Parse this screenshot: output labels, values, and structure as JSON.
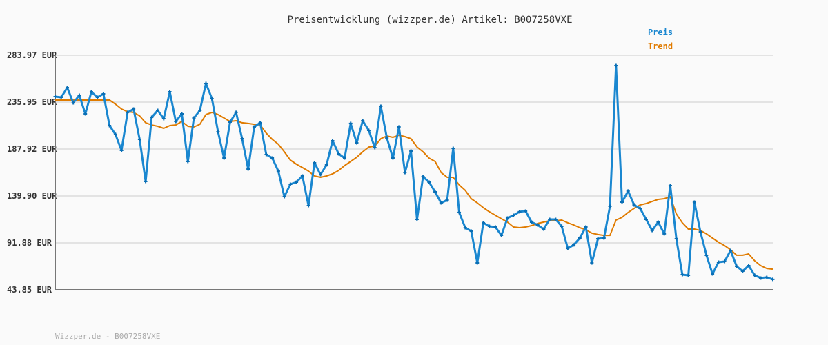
{
  "chart_data": {
    "type": "line",
    "title": "Preisentwicklung (wizzper.de) Artikel: B007258VXE",
    "footer": "Wizzper.de - B007258VXE",
    "ylim": [
      43.85,
      283.97
    ],
    "yticks": [
      "283.97 EUR",
      "235.95 EUR",
      "187.92 EUR",
      "139.90 EUR",
      "91.88 EUR",
      "43.85 EUR"
    ],
    "ytick_values": [
      283.97,
      235.95,
      187.92,
      139.9,
      91.88,
      43.85
    ],
    "grid": true,
    "legend_placement": "top-right",
    "series": [
      {
        "name": "Preis",
        "color": "#1a87d0",
        "markers": true,
        "values": [
          241.6,
          240.9,
          250.8,
          235.2,
          243.0,
          223.9,
          246.5,
          240.9,
          244.4,
          211.9,
          202.8,
          186.5,
          225.4,
          228.9,
          197.8,
          154.7,
          220.4,
          227.5,
          219.0,
          246.5,
          216.2,
          223.9,
          175.2,
          219.7,
          227.5,
          255.0,
          239.5,
          205.6,
          178.7,
          215.5,
          225.4,
          198.5,
          167.4,
          210.5,
          214.8,
          182.3,
          178.7,
          165.3,
          139.2,
          151.9,
          154.0,
          160.4,
          130.0,
          173.8,
          161.8,
          171.7,
          196.4,
          183.0,
          178.7,
          214.1,
          194.3,
          216.9,
          207.0,
          189.3,
          231.7,
          199.2,
          178.7,
          210.5,
          163.9,
          185.8,
          115.9,
          159.7,
          154.0,
          144.1,
          132.8,
          135.7,
          188.6,
          123.0,
          107.4,
          103.9,
          71.4,
          112.4,
          108.8,
          108.1,
          99.6,
          117.3,
          120.1,
          123.7,
          124.4,
          113.1,
          110.2,
          106.0,
          115.9,
          115.9,
          108.8,
          86.2,
          89.8,
          96.8,
          108.1,
          71.4,
          96.1,
          96.8,
          129.3,
          273.4,
          133.5,
          144.9,
          130.7,
          127.2,
          115.9,
          104.6,
          113.1,
          101.1,
          150.5,
          96.1,
          59.4,
          58.7,
          133.5,
          103.2,
          79.2,
          60.1,
          72.1,
          72.8,
          84.1,
          67.9,
          62.9,
          68.6,
          58.7,
          55.9,
          56.6,
          54.5
        ]
      },
      {
        "name": "Trend",
        "color": "#e07b00",
        "markers": false,
        "values": [
          238.1,
          238.1,
          238.1,
          238.1,
          238.1,
          238.1,
          238.1,
          238.1,
          238.1,
          238.1,
          233.8,
          228.9,
          226.1,
          225.4,
          221.8,
          214.8,
          212.6,
          211.2,
          209.1,
          211.9,
          212.6,
          216.2,
          211.2,
          210.5,
          213.3,
          223.2,
          225.4,
          223.2,
          219.7,
          216.2,
          216.9,
          214.8,
          214.1,
          213.3,
          212.6,
          204.2,
          197.8,
          192.9,
          185.1,
          176.6,
          172.4,
          168.9,
          165.3,
          160.4,
          159.0,
          160.4,
          162.5,
          166.0,
          171.0,
          175.2,
          179.5,
          185.1,
          190.0,
          190.8,
          198.5,
          201.3,
          199.9,
          202.1,
          200.6,
          198.5,
          190.0,
          185.1,
          178.7,
          175.2,
          163.9,
          159.0,
          159.0,
          151.2,
          145.6,
          137.1,
          132.8,
          127.9,
          123.7,
          120.1,
          116.6,
          113.1,
          108.1,
          107.4,
          108.1,
          109.5,
          111.7,
          113.1,
          114.5,
          114.5,
          115.2,
          112.4,
          110.2,
          107.4,
          105.3,
          101.8,
          100.4,
          99.6,
          99.6,
          115.2,
          118.0,
          123.0,
          127.2,
          130.7,
          132.1,
          134.3,
          136.4,
          137.1,
          139.2,
          121.5,
          112.4,
          106.0,
          106.0,
          104.6,
          101.1,
          96.8,
          92.6,
          89.1,
          84.8,
          79.2,
          79.2,
          80.6,
          73.5,
          68.6,
          65.7,
          65.0
        ]
      }
    ]
  }
}
